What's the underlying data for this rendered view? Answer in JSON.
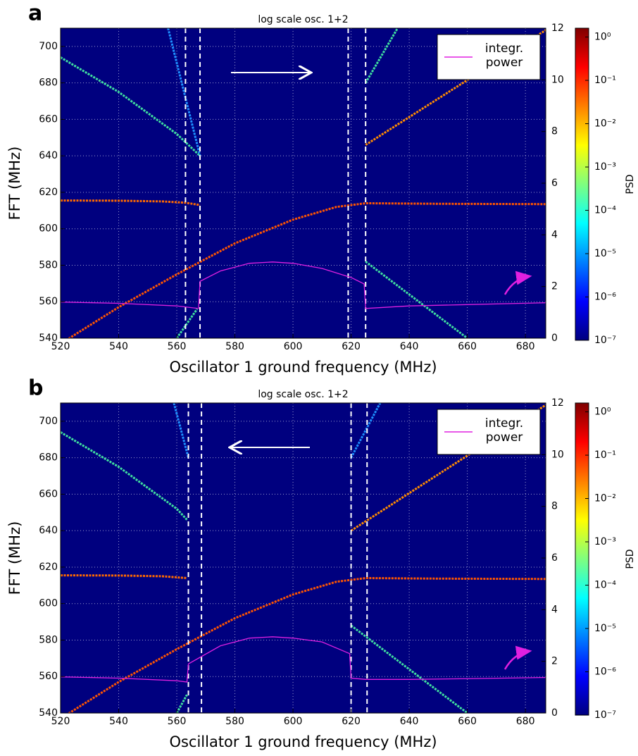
{
  "chart_data": [
    {
      "type": "line",
      "panel": "a",
      "title": "log scale osc. 1+2",
      "xlabel": "Oscillator 1 ground frequency (MHz)",
      "ylabel": "FFT (MHz)",
      "xlim": [
        520,
        687
      ],
      "xticks": [
        520,
        540,
        560,
        580,
        600,
        620,
        640,
        660,
        680
      ],
      "ylim": [
        540,
        710
      ],
      "yticks": [
        540,
        560,
        580,
        600,
        620,
        640,
        660,
        680,
        700
      ],
      "y2lim": [
        0,
        12
      ],
      "y2ticks": [
        0,
        2,
        4,
        6,
        8,
        10,
        12
      ],
      "grid": true,
      "legend": "upper right",
      "sweep_direction": "right",
      "vlines": [
        563,
        568,
        619,
        625
      ],
      "series": [
        {
          "name": "integr. power",
          "color": "#e020e0",
          "axis": "y2",
          "x": [
            520,
            540,
            560,
            567.5,
            568,
            575,
            585,
            593,
            600,
            610,
            620,
            624.5,
            625,
            640,
            660,
            690
          ],
          "values": [
            1.4,
            1.35,
            1.25,
            1.15,
            2.2,
            2.6,
            2.9,
            2.95,
            2.9,
            2.7,
            2.35,
            2.1,
            1.15,
            1.25,
            1.3,
            1.38
          ]
        }
      ],
      "traces": [
        {
          "color": "#ff6a00",
          "x": [
            520,
            540,
            555,
            563,
            568
          ],
          "values": [
            615.5,
            615.4,
            615,
            614.3,
            613
          ]
        },
        {
          "color": "#ff5500",
          "x": [
            520,
            540,
            560,
            580,
            600,
            615,
            620,
            625,
            650,
            690
          ],
          "values": [
            537,
            557,
            575,
            592,
            605,
            612,
            613,
            614,
            613.7,
            613.5
          ]
        },
        {
          "color": "#40e0a0",
          "x": [
            520,
            540,
            560,
            568
          ],
          "values": [
            694,
            675,
            652,
            640
          ]
        },
        {
          "color": "#1e90ff",
          "x": [
            557,
            568
          ],
          "values": [
            710,
            640
          ]
        },
        {
          "color": "#ff8c00",
          "x": [
            625,
            690
          ],
          "values": [
            646,
            712
          ]
        },
        {
          "color": "#40e0a0",
          "x": [
            625,
            660
          ],
          "values": [
            582,
            540
          ]
        },
        {
          "color": "#40e0a0",
          "x": [
            560,
            567
          ],
          "values": [
            540,
            556
          ]
        },
        {
          "color": "#40e0a0",
          "x": [
            625,
            636
          ],
          "values": [
            680,
            710
          ]
        }
      ],
      "colorbar": {
        "label": "PSD",
        "clim": [
          1e-07,
          1.6
        ],
        "ticks": [
          {
            "value": 1,
            "label": "10⁰"
          },
          {
            "value": 0.1,
            "label": "10⁻¹"
          },
          {
            "value": 0.01,
            "label": "10⁻²"
          },
          {
            "value": 0.001,
            "label": "10⁻³"
          },
          {
            "value": 0.0001,
            "label": "10⁻⁴"
          },
          {
            "value": 1e-05,
            "label": "10⁻⁵"
          },
          {
            "value": 1e-06,
            "label": "10⁻⁶"
          },
          {
            "value": 1e-07,
            "label": "10⁻⁷"
          }
        ]
      }
    },
    {
      "type": "line",
      "panel": "b",
      "title": "log scale osc. 1+2",
      "xlabel": "Oscillator 1 ground frequency (MHz)",
      "ylabel": "FFT (MHz)",
      "xlim": [
        520,
        687
      ],
      "xticks": [
        520,
        540,
        560,
        580,
        600,
        620,
        640,
        660,
        680
      ],
      "ylim": [
        540,
        710
      ],
      "yticks": [
        540,
        560,
        580,
        600,
        620,
        640,
        660,
        680,
        700
      ],
      "y2lim": [
        0,
        12
      ],
      "y2ticks": [
        0,
        2,
        4,
        6,
        8,
        10,
        12
      ],
      "grid": true,
      "legend": "upper right",
      "sweep_direction": "left",
      "vlines": [
        564,
        568.5,
        620,
        625.5
      ],
      "series": [
        {
          "name": "integr. power",
          "color": "#e020e0",
          "axis": "y2",
          "x": [
            520,
            540,
            560,
            563.5,
            564,
            575,
            585,
            593,
            600,
            610,
            619.5,
            620,
            625,
            640,
            660,
            690
          ],
          "values": [
            1.4,
            1.35,
            1.25,
            1.2,
            1.9,
            2.6,
            2.9,
            2.95,
            2.9,
            2.75,
            2.3,
            1.35,
            1.3,
            1.3,
            1.33,
            1.38
          ]
        }
      ],
      "traces": [
        {
          "color": "#ff6a00",
          "x": [
            520,
            540,
            555,
            563.5
          ],
          "values": [
            615.5,
            615.4,
            615,
            614
          ]
        },
        {
          "color": "#ff5500",
          "x": [
            520,
            540,
            560,
            580,
            600,
            615,
            620,
            625,
            650,
            690
          ],
          "values": [
            537,
            557,
            575,
            592,
            605,
            612,
            613,
            614,
            613.7,
            613.5
          ]
        },
        {
          "color": "#40e0a0",
          "x": [
            520,
            540,
            560,
            563.5
          ],
          "values": [
            694,
            675,
            652,
            646
          ]
        },
        {
          "color": "#1e90ff",
          "x": [
            559,
            564
          ],
          "values": [
            710,
            680
          ]
        },
        {
          "color": "#ff8c00",
          "x": [
            620,
            690
          ],
          "values": [
            640,
            712
          ]
        },
        {
          "color": "#40e0a0",
          "x": [
            620,
            660
          ],
          "values": [
            588,
            540
          ]
        },
        {
          "color": "#40e0a0",
          "x": [
            560,
            563.5
          ],
          "values": [
            540,
            550
          ]
        },
        {
          "color": "#1e90ff",
          "x": [
            620,
            630
          ],
          "values": [
            680,
            710
          ]
        }
      ],
      "colorbar": {
        "label": "PSD",
        "clim": [
          1e-07,
          1.6
        ],
        "ticks": [
          {
            "value": 1,
            "label": "10⁰"
          },
          {
            "value": 0.1,
            "label": "10⁻¹"
          },
          {
            "value": 0.01,
            "label": "10⁻²"
          },
          {
            "value": 0.001,
            "label": "10⁻³"
          },
          {
            "value": 0.0001,
            "label": "10⁻⁴"
          },
          {
            "value": 1e-05,
            "label": "10⁻⁵"
          },
          {
            "value": 1e-06,
            "label": "10⁻⁶"
          },
          {
            "value": 1e-07,
            "label": "10⁻⁷"
          }
        ]
      }
    }
  ]
}
